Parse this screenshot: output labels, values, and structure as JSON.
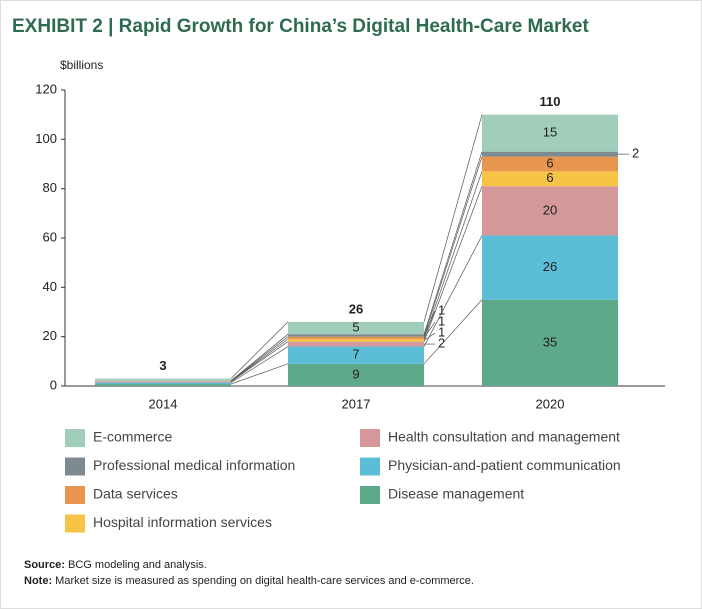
{
  "chart_data": {
    "type": "stacked_bar",
    "title": "EXHIBIT 2 | Rapid Growth for China’s Digital Health-Care Market",
    "y_axis_label": "$billions",
    "categories": [
      "2014",
      "2017",
      "2020"
    ],
    "totals": [
      3,
      26,
      110
    ],
    "series": [
      {
        "name": "Disease management",
        "color": "#5fa98b",
        "values": [
          0.8,
          9,
          35
        ],
        "value_labels": [
          null,
          "9",
          "35"
        ]
      },
      {
        "name": "Physician-and-patient communication",
        "color": "#5cbdd7",
        "values": [
          0.6,
          7,
          26
        ],
        "value_labels": [
          null,
          "7",
          "26"
        ]
      },
      {
        "name": "Health consultation and management",
        "color": "#d4989b",
        "values": [
          0.4,
          2,
          20
        ],
        "value_labels": [
          null,
          "2",
          "20"
        ]
      },
      {
        "name": "Hospital information services",
        "color": "#f7c447",
        "values": [
          0.1,
          1,
          6
        ],
        "value_labels": [
          null,
          "1",
          "6"
        ]
      },
      {
        "name": "Data services",
        "color": "#e8964f",
        "values": [
          0.1,
          1,
          6
        ],
        "value_labels": [
          null,
          "1",
          "6"
        ]
      },
      {
        "name": "Professional medical information",
        "color": "#7d8b90",
        "values": [
          0.1,
          1,
          2
        ],
        "value_labels": [
          null,
          "1",
          "2"
        ]
      },
      {
        "name": "E-commerce",
        "color": "#a1cdbb",
        "values": [
          0.9,
          5,
          15
        ],
        "value_labels": [
          null,
          "5",
          "15"
        ]
      }
    ],
    "ylim": [
      0,
      120
    ],
    "yticks": [
      0,
      20,
      40,
      60,
      80,
      100,
      120
    ],
    "legend_order": [
      6,
      5,
      4,
      3,
      2,
      1,
      0
    ],
    "source": {
      "label": "Source:",
      "text": "BCG modeling and analysis."
    },
    "note": {
      "label": "Note:",
      "text": "Market size is measured as spending on digital health-care services and e-commerce."
    }
  }
}
